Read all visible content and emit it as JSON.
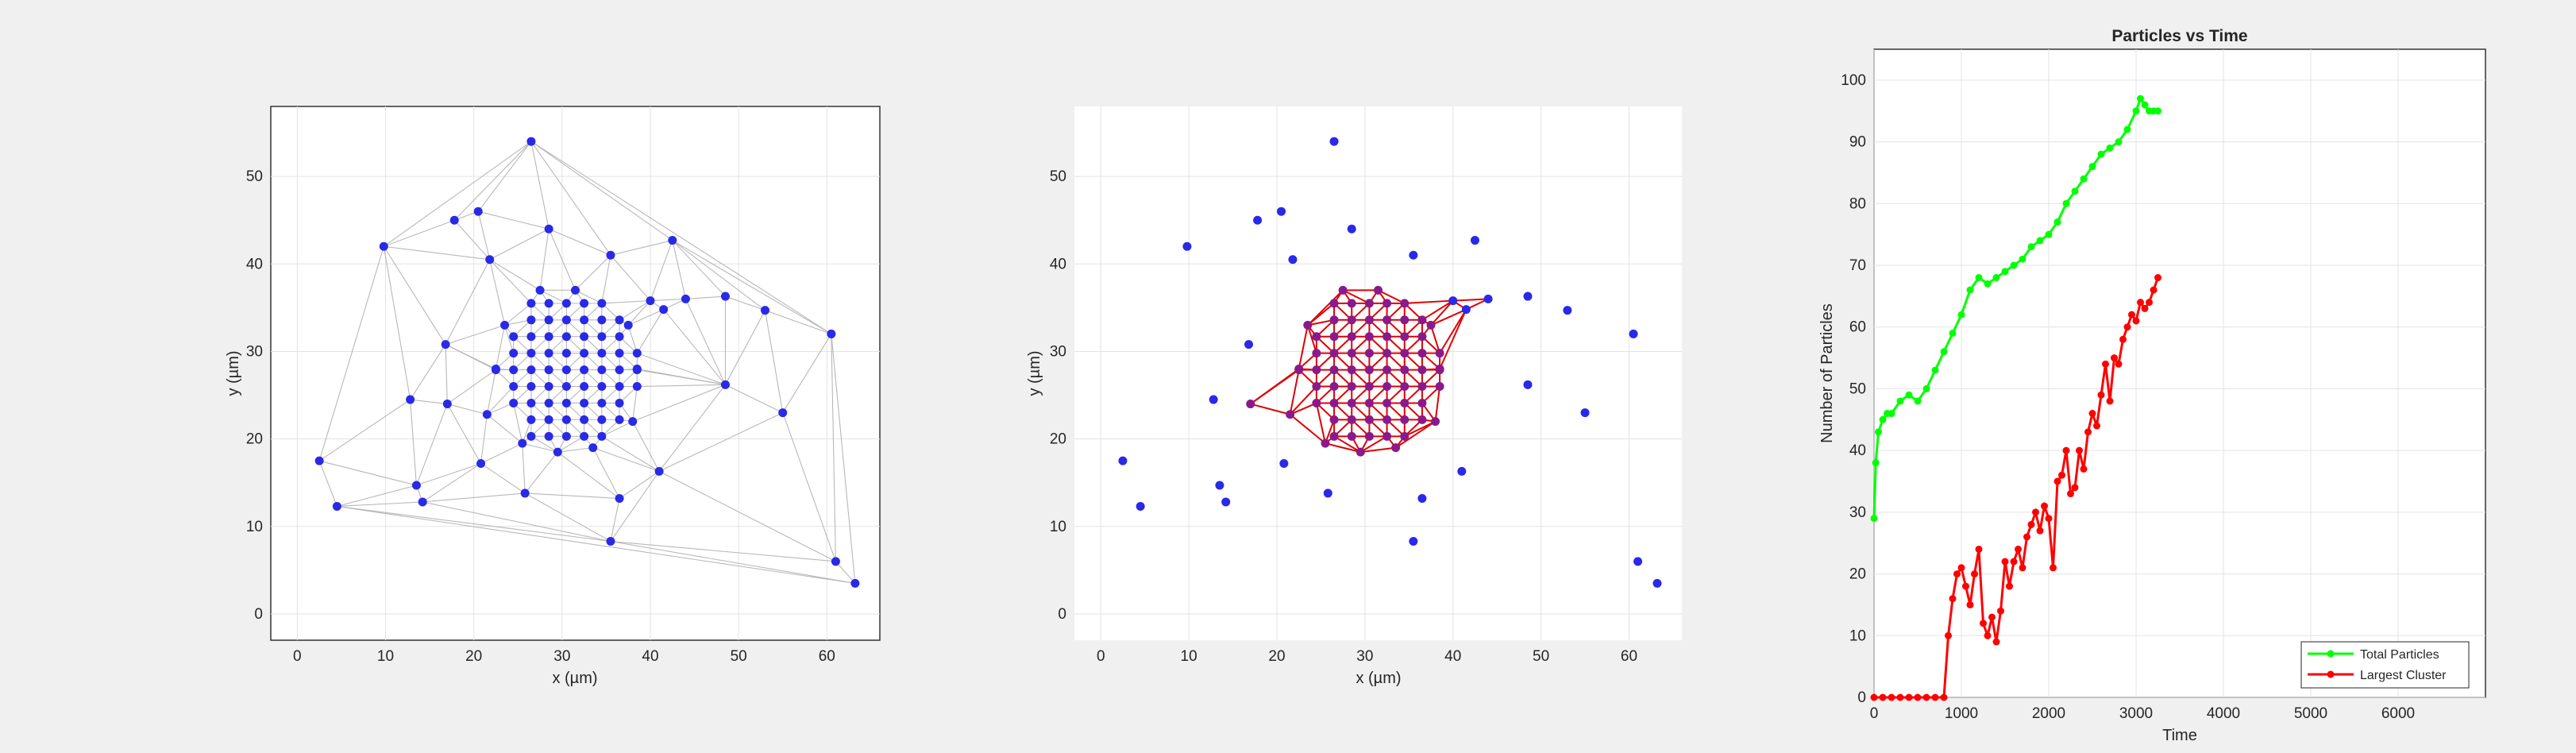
{
  "chart_data": [
    {
      "type": "scatter",
      "title": "",
      "xlabel": "x (µm)",
      "ylabel": "y (µm)",
      "xlim": [
        -3,
        66
      ],
      "ylim": [
        -3,
        58
      ],
      "xticks": [
        0,
        10,
        20,
        30,
        40,
        50,
        60
      ],
      "yticks": [
        0,
        10,
        20,
        30,
        40,
        50
      ],
      "grid": true,
      "point_color": "#2929e8",
      "edge_color": "#b8b8b8",
      "edges": "delaunay triangulation of all particles"
    },
    {
      "type": "scatter",
      "title": "",
      "xlabel": "x (µm)",
      "ylabel": "y (µm)",
      "xlim": [
        -3,
        66
      ],
      "ylim": [
        -3,
        58
      ],
      "xticks": [
        0,
        10,
        20,
        30,
        40,
        50,
        60
      ],
      "yticks": [
        0,
        10,
        20,
        30,
        40,
        50
      ],
      "grid": true,
      "point_color": "#2929e8",
      "cluster_point_color": "#8a1a8a",
      "edge_color": "#e00000",
      "edges": "triangulation of largest cluster only"
    },
    {
      "type": "line",
      "title": "Particles vs Time",
      "xlabel": "Time",
      "ylabel": "Number of Particles",
      "xlim": [
        0,
        7000
      ],
      "ylim": [
        0,
        105
      ],
      "xticks": [
        0,
        1000,
        2000,
        3000,
        4000,
        5000,
        6000
      ],
      "yticks": [
        0,
        10,
        20,
        30,
        40,
        50,
        60,
        70,
        80,
        90,
        100
      ],
      "grid": true,
      "legend_position": "bottom-right",
      "series": [
        {
          "name": "Total Particles",
          "color": "#00ff00",
          "x": [
            0,
            20,
            50,
            100,
            150,
            200,
            300,
            400,
            500,
            600,
            700,
            800,
            900,
            1000,
            1100,
            1200,
            1300,
            1400,
            1500,
            1600,
            1700,
            1800,
            1900,
            2000,
            2100,
            2200,
            2300,
            2400,
            2500,
            2600,
            2700,
            2800,
            2900,
            3000,
            3050,
            3100,
            3150,
            3200,
            3250
          ],
          "values": [
            29,
            38,
            43,
            45,
            46,
            46,
            48,
            49,
            48,
            50,
            53,
            56,
            59,
            62,
            66,
            68,
            67,
            68,
            69,
            70,
            71,
            73,
            74,
            75,
            77,
            80,
            82,
            84,
            86,
            88,
            89,
            90,
            92,
            95,
            97,
            96,
            95,
            95,
            95
          ]
        },
        {
          "name": "Largest Cluster",
          "color": "#ff0000",
          "x": [
            0,
            100,
            200,
            300,
            400,
            500,
            600,
            700,
            800,
            850,
            900,
            950,
            1000,
            1050,
            1100,
            1150,
            1200,
            1250,
            1300,
            1350,
            1400,
            1450,
            1500,
            1550,
            1600,
            1650,
            1700,
            1750,
            1800,
            1850,
            1900,
            1950,
            2000,
            2050,
            2100,
            2150,
            2200,
            2250,
            2300,
            2350,
            2400,
            2450,
            2500,
            2550,
            2600,
            2650,
            2700,
            2750,
            2800,
            2850,
            2900,
            2950,
            3000,
            3050,
            3100,
            3150,
            3200,
            3250
          ],
          "values": [
            0,
            0,
            0,
            0,
            0,
            0,
            0,
            0,
            0,
            10,
            16,
            20,
            21,
            18,
            15,
            20,
            24,
            12,
            10,
            13,
            9,
            14,
            22,
            18,
            22,
            24,
            21,
            26,
            28,
            30,
            27,
            31,
            29,
            21,
            35,
            36,
            40,
            33,
            34,
            40,
            37,
            43,
            46,
            44,
            49,
            54,
            48,
            55,
            54,
            58,
            60,
            62,
            61,
            64,
            63,
            64,
            66,
            68
          ]
        }
      ]
    }
  ]
}
